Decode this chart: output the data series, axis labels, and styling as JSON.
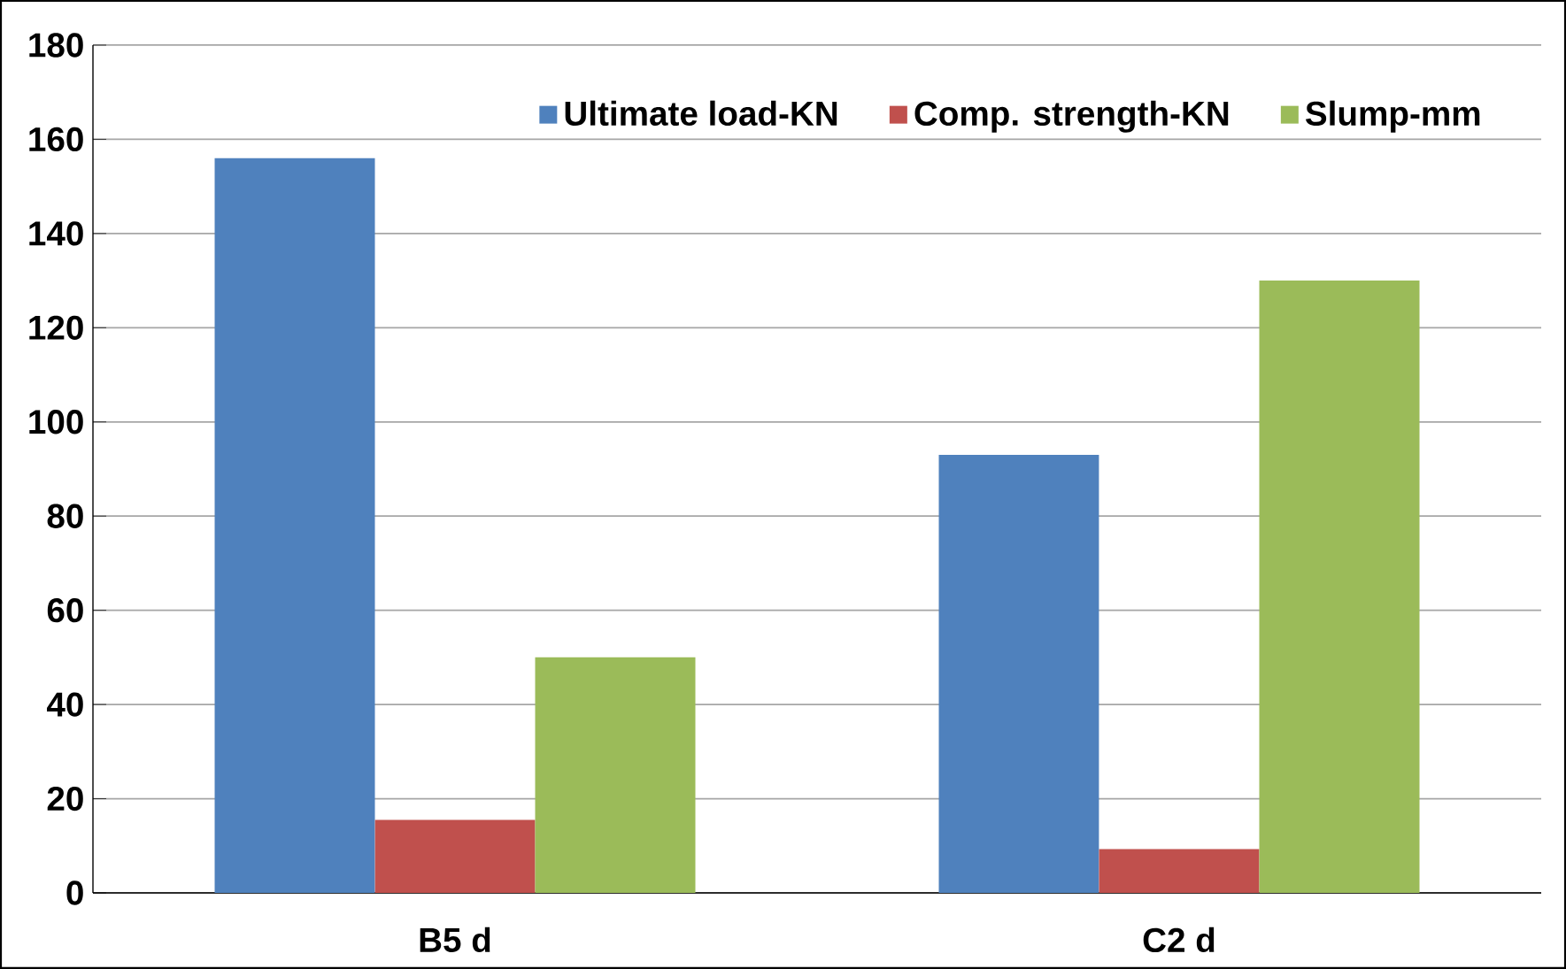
{
  "chart_data": {
    "type": "bar",
    "categories": [
      "B5 d",
      "C2 d"
    ],
    "series": [
      {
        "name": "Ultimate load-KN",
        "color": "#4f81bd",
        "values": [
          156,
          93
        ]
      },
      {
        "name": "Comp. strength-KN",
        "color": "#c0504d",
        "values": [
          15.5,
          9.3
        ]
      },
      {
        "name": "Slump-mm",
        "color": "#9bbb59",
        "values": [
          50,
          130
        ]
      }
    ],
    "ylim": [
      0,
      180
    ],
    "yticks": [
      0,
      20,
      40,
      60,
      80,
      100,
      120,
      140,
      160,
      180
    ],
    "grid": "y",
    "legend": "top right"
  }
}
